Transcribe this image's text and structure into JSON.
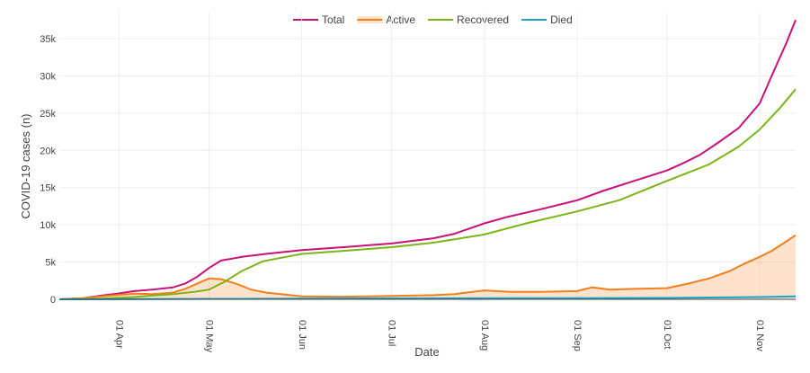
{
  "chart_data": {
    "type": "line",
    "xlabel": "Date",
    "ylabel": "COVID-19 cases (n)",
    "x_range": [
      "2020-03-12",
      "2020-11-13"
    ],
    "ylim": [
      0,
      38500
    ],
    "grid": true,
    "legend_position": "top-center",
    "x_ticks": [
      {
        "date": "2020-04-01",
        "label": "01 Apr"
      },
      {
        "date": "2020-05-01",
        "label": "01 May"
      },
      {
        "date": "2020-06-01",
        "label": "01 Jun"
      },
      {
        "date": "2020-07-01",
        "label": "01 Jul"
      },
      {
        "date": "2020-08-01",
        "label": "01 Aug"
      },
      {
        "date": "2020-09-01",
        "label": "01 Sep"
      },
      {
        "date": "2020-10-01",
        "label": "01 Oct"
      },
      {
        "date": "2020-11-01",
        "label": "01 Nov"
      }
    ],
    "y_ticks": [
      {
        "value": 0,
        "label": "0"
      },
      {
        "value": 5000,
        "label": "5k"
      },
      {
        "value": 10000,
        "label": "10k"
      },
      {
        "value": 15000,
        "label": "15k"
      },
      {
        "value": 20000,
        "label": "20k"
      },
      {
        "value": 25000,
        "label": "25k"
      },
      {
        "value": 30000,
        "label": "30k"
      },
      {
        "value": 35000,
        "label": "35k"
      }
    ],
    "series": [
      {
        "name": "Total",
        "color": "#c8127a",
        "fill": false,
        "points": [
          [
            "2020-03-12",
            0
          ],
          [
            "2020-03-20",
            150
          ],
          [
            "2020-03-26",
            500
          ],
          [
            "2020-04-01",
            800
          ],
          [
            "2020-04-06",
            1100
          ],
          [
            "2020-04-12",
            1300
          ],
          [
            "2020-04-19",
            1600
          ],
          [
            "2020-04-23",
            2100
          ],
          [
            "2020-04-27",
            3000
          ],
          [
            "2020-05-01",
            4200
          ],
          [
            "2020-05-05",
            5200
          ],
          [
            "2020-05-12",
            5700
          ],
          [
            "2020-05-20",
            6100
          ],
          [
            "2020-06-01",
            6600
          ],
          [
            "2020-06-15",
            7000
          ],
          [
            "2020-07-01",
            7500
          ],
          [
            "2020-07-15",
            8200
          ],
          [
            "2020-07-22",
            8800
          ],
          [
            "2020-08-01",
            10200
          ],
          [
            "2020-08-08",
            11000
          ],
          [
            "2020-08-20",
            12100
          ],
          [
            "2020-09-01",
            13300
          ],
          [
            "2020-09-10",
            14600
          ],
          [
            "2020-09-20",
            15900
          ],
          [
            "2020-10-01",
            17300
          ],
          [
            "2020-10-06",
            18200
          ],
          [
            "2020-10-12",
            19400
          ],
          [
            "2020-10-18",
            21000
          ],
          [
            "2020-10-25",
            23000
          ],
          [
            "2020-11-01",
            26300
          ],
          [
            "2020-11-05",
            30000
          ],
          [
            "2020-11-10",
            34500
          ],
          [
            "2020-11-13",
            37500
          ]
        ]
      },
      {
        "name": "Active",
        "color": "#f47f1d",
        "fill": true,
        "fill_color": "rgba(244,127,29,0.22)",
        "points": [
          [
            "2020-03-12",
            0
          ],
          [
            "2020-03-20",
            150
          ],
          [
            "2020-03-26",
            400
          ],
          [
            "2020-04-01",
            600
          ],
          [
            "2020-04-06",
            750
          ],
          [
            "2020-04-12",
            700
          ],
          [
            "2020-04-19",
            900
          ],
          [
            "2020-04-23",
            1400
          ],
          [
            "2020-04-27",
            2100
          ],
          [
            "2020-05-01",
            2800
          ],
          [
            "2020-05-05",
            2700
          ],
          [
            "2020-05-10",
            2100
          ],
          [
            "2020-05-15",
            1300
          ],
          [
            "2020-05-20",
            900
          ],
          [
            "2020-06-01",
            400
          ],
          [
            "2020-06-15",
            350
          ],
          [
            "2020-07-01",
            450
          ],
          [
            "2020-07-15",
            550
          ],
          [
            "2020-07-22",
            700
          ],
          [
            "2020-08-01",
            1200
          ],
          [
            "2020-08-10",
            1000
          ],
          [
            "2020-08-20",
            1000
          ],
          [
            "2020-09-01",
            1100
          ],
          [
            "2020-09-06",
            1600
          ],
          [
            "2020-09-12",
            1300
          ],
          [
            "2020-09-20",
            1400
          ],
          [
            "2020-10-01",
            1500
          ],
          [
            "2020-10-08",
            2100
          ],
          [
            "2020-10-15",
            2800
          ],
          [
            "2020-10-22",
            3800
          ],
          [
            "2020-10-27",
            4800
          ],
          [
            "2020-11-01",
            5700
          ],
          [
            "2020-11-05",
            6500
          ],
          [
            "2020-11-10",
            7800
          ],
          [
            "2020-11-13",
            8600
          ]
        ]
      },
      {
        "name": "Recovered",
        "color": "#7cb518",
        "fill": false,
        "points": [
          [
            "2020-03-12",
            0
          ],
          [
            "2020-03-26",
            100
          ],
          [
            "2020-04-06",
            300
          ],
          [
            "2020-04-12",
            500
          ],
          [
            "2020-04-19",
            700
          ],
          [
            "2020-04-26",
            1000
          ],
          [
            "2020-05-01",
            1300
          ],
          [
            "2020-05-06",
            2300
          ],
          [
            "2020-05-12",
            3800
          ],
          [
            "2020-05-19",
            5100
          ],
          [
            "2020-06-01",
            6100
          ],
          [
            "2020-06-15",
            6500
          ],
          [
            "2020-07-01",
            7000
          ],
          [
            "2020-07-15",
            7600
          ],
          [
            "2020-08-01",
            8700
          ],
          [
            "2020-08-15",
            10200
          ],
          [
            "2020-09-01",
            11800
          ],
          [
            "2020-09-15",
            13300
          ],
          [
            "2020-10-01",
            15900
          ],
          [
            "2020-10-15",
            18100
          ],
          [
            "2020-10-25",
            20500
          ],
          [
            "2020-11-01",
            22800
          ],
          [
            "2020-11-08",
            25800
          ],
          [
            "2020-11-13",
            28200
          ]
        ]
      },
      {
        "name": "Died",
        "color": "#1aa2c8",
        "fill": false,
        "points": [
          [
            "2020-03-12",
            0
          ],
          [
            "2020-05-01",
            60
          ],
          [
            "2020-07-01",
            120
          ],
          [
            "2020-09-01",
            150
          ],
          [
            "2020-10-01",
            180
          ],
          [
            "2020-11-01",
            300
          ],
          [
            "2020-11-13",
            400
          ]
        ]
      }
    ]
  }
}
